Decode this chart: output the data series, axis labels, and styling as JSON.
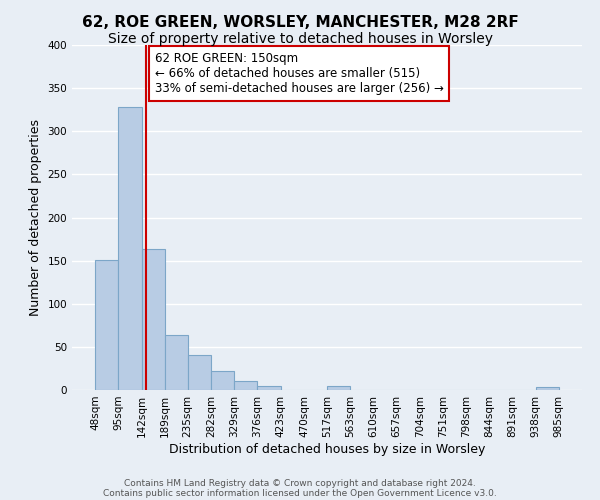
{
  "title": "62, ROE GREEN, WORSLEY, MANCHESTER, M28 2RF",
  "subtitle": "Size of property relative to detached houses in Worsley",
  "xlabel": "Distribution of detached houses by size in Worsley",
  "ylabel": "Number of detached properties",
  "bar_left_edges": [
    48,
    95,
    142,
    189,
    235,
    282,
    329,
    376,
    423,
    470,
    517,
    563,
    610,
    657,
    704,
    751,
    798,
    844,
    891,
    938
  ],
  "bar_right_edges": [
    95,
    142,
    189,
    235,
    282,
    329,
    376,
    423,
    470,
    517,
    563,
    610,
    657,
    704,
    751,
    798,
    844,
    891,
    938,
    985
  ],
  "bar_heights": [
    151,
    328,
    164,
    64,
    41,
    22,
    10,
    5,
    0,
    0,
    5,
    0,
    0,
    0,
    0,
    0,
    0,
    0,
    0,
    3
  ],
  "xtick_values": [
    48,
    95,
    142,
    189,
    235,
    282,
    329,
    376,
    423,
    470,
    517,
    563,
    610,
    657,
    704,
    751,
    798,
    844,
    891,
    938,
    985
  ],
  "bar_color": "#b8cce4",
  "bar_edge_color": "#7ca6c8",
  "marker_x": 150,
  "marker_color": "#cc0000",
  "annotation_line1": "62 ROE GREEN: 150sqm",
  "annotation_line2": "← 66% of detached houses are smaller (515)",
  "annotation_line3": "33% of semi-detached houses are larger (256) →",
  "annotation_box_color": "#ffffff",
  "annotation_box_edge": "#cc0000",
  "ylim": [
    0,
    400
  ],
  "yticks": [
    0,
    50,
    100,
    150,
    200,
    250,
    300,
    350,
    400
  ],
  "footnote1": "Contains HM Land Registry data © Crown copyright and database right 2024.",
  "footnote2": "Contains public sector information licensed under the Open Government Licence v3.0.",
  "background_color": "#e8eef5",
  "plot_bg_color": "#e8eef5",
  "grid_color": "#ffffff",
  "title_fontsize": 11,
  "subtitle_fontsize": 10,
  "tick_label_fontsize": 7.5,
  "axis_label_fontsize": 9,
  "annotation_fontsize": 8.5,
  "footnote_fontsize": 6.5,
  "footnote_color": "#555555"
}
